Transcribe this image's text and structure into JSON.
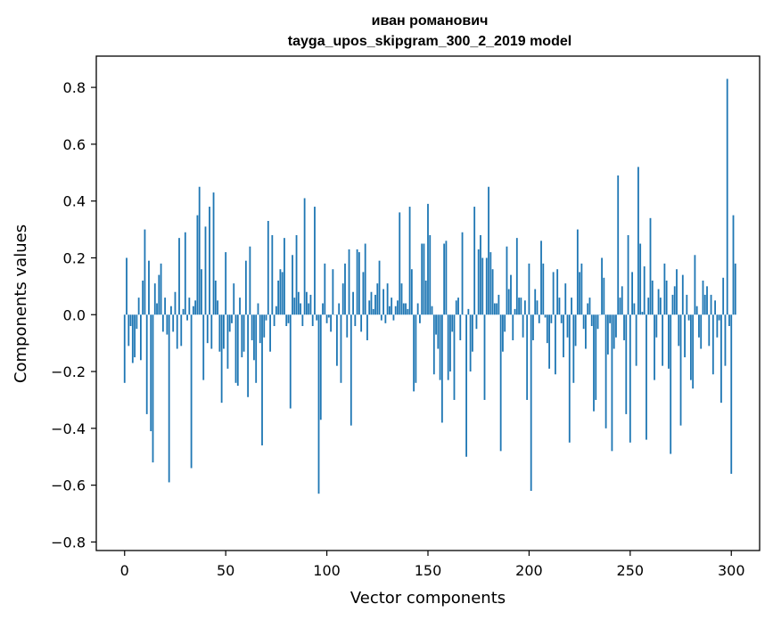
{
  "chart_data": {
    "type": "bar",
    "title": "иван романович",
    "subtitle": "tayga_upos_skipgram_300_2_2019 model",
    "xlabel": "Vector components",
    "ylabel": "Components values",
    "xlim": [
      -14,
      314
    ],
    "ylim": [
      -0.83,
      0.91
    ],
    "xticks": [
      0,
      50,
      100,
      150,
      200,
      250,
      300
    ],
    "yticks": [
      -0.8,
      -0.6,
      -0.4,
      -0.2,
      0.0,
      0.2,
      0.4,
      0.6,
      0.8
    ],
    "ytick_labels": [
      "−0.8",
      "−0.6",
      "−0.4",
      "−0.2",
      "0.0",
      "0.2",
      "0.4",
      "0.6",
      "0.8"
    ],
    "grid": false,
    "bar_color": "#1f77b4",
    "values": [
      -0.24,
      0.2,
      -0.11,
      -0.04,
      -0.17,
      -0.15,
      -0.05,
      0.06,
      -0.16,
      0.12,
      0.3,
      -0.35,
      0.19,
      -0.41,
      -0.52,
      0.11,
      0.04,
      0.14,
      0.18,
      -0.06,
      0.06,
      -0.07,
      -0.59,
      0.03,
      -0.06,
      0.08,
      -0.12,
      0.27,
      -0.11,
      0.02,
      0.29,
      -0.02,
      0.06,
      -0.54,
      0.03,
      0.05,
      0.35,
      0.45,
      0.16,
      -0.23,
      0.31,
      -0.1,
      0.38,
      -0.12,
      0.43,
      0.12,
      0.05,
      -0.13,
      -0.31,
      -0.12,
      0.22,
      -0.19,
      -0.06,
      -0.03,
      0.11,
      -0.24,
      -0.25,
      0.06,
      -0.15,
      -0.13,
      0.19,
      -0.29,
      0.24,
      -0.09,
      -0.16,
      -0.24,
      0.04,
      -0.1,
      -0.46,
      -0.08,
      -0.02,
      0.33,
      -0.13,
      0.28,
      -0.04,
      0.03,
      0.12,
      0.16,
      0.15,
      0.27,
      -0.04,
      -0.03,
      -0.33,
      0.21,
      0.06,
      0.28,
      0.08,
      0.04,
      -0.04,
      0.41,
      0.08,
      0.04,
      0.07,
      -0.04,
      0.38,
      -0.02,
      -0.63,
      -0.37,
      0.04,
      0.18,
      -0.03,
      -0.01,
      -0.06,
      0.16,
      0.0,
      -0.18,
      0.04,
      -0.24,
      0.11,
      0.18,
      -0.08,
      0.23,
      -0.39,
      0.08,
      -0.04,
      0.23,
      0.22,
      -0.06,
      0.15,
      0.25,
      -0.09,
      0.05,
      0.08,
      0.02,
      0.07,
      0.11,
      0.19,
      -0.02,
      0.09,
      -0.03,
      0.11,
      0.03,
      0.06,
      -0.02,
      0.03,
      0.05,
      0.36,
      0.11,
      0.04,
      0.04,
      0.02,
      0.38,
      0.16,
      -0.27,
      -0.24,
      0.04,
      -0.03,
      0.25,
      0.25,
      0.12,
      0.39,
      0.28,
      0.03,
      -0.21,
      -0.07,
      -0.12,
      -0.23,
      -0.38,
      0.25,
      0.26,
      -0.23,
      -0.2,
      -0.06,
      -0.3,
      0.05,
      0.06,
      -0.09,
      0.29,
      0.0,
      -0.5,
      0.02,
      -0.2,
      -0.13,
      0.38,
      -0.05,
      0.23,
      0.28,
      0.2,
      -0.3,
      0.2,
      0.45,
      0.22,
      0.16,
      0.04,
      0.04,
      0.07,
      -0.48,
      -0.13,
      -0.06,
      0.24,
      0.09,
      0.14,
      -0.09,
      0.02,
      0.27,
      0.06,
      0.06,
      -0.08,
      0.05,
      -0.3,
      0.18,
      -0.62,
      -0.09,
      0.09,
      0.05,
      -0.03,
      0.26,
      0.18,
      -0.01,
      -0.1,
      -0.19,
      -0.03,
      0.15,
      -0.21,
      0.16,
      0.06,
      -0.03,
      -0.15,
      0.11,
      -0.08,
      -0.45,
      0.06,
      -0.24,
      -0.11,
      0.3,
      0.15,
      0.18,
      -0.05,
      -0.12,
      0.04,
      0.06,
      -0.04,
      -0.34,
      -0.3,
      -0.05,
      0.0,
      0.2,
      0.13,
      -0.4,
      -0.14,
      -0.03,
      -0.48,
      -0.12,
      -0.08,
      0.49,
      0.06,
      0.1,
      -0.09,
      -0.35,
      0.28,
      -0.45,
      0.15,
      0.04,
      -0.18,
      0.52,
      0.25,
      0.01,
      0.17,
      -0.44,
      0.06,
      0.34,
      0.12,
      -0.23,
      -0.08,
      0.09,
      0.06,
      -0.18,
      0.18,
      0.12,
      -0.19,
      -0.49,
      0.07,
      0.1,
      0.16,
      -0.11,
      -0.39,
      0.14,
      -0.15,
      0.07,
      -0.02,
      -0.23,
      -0.26,
      0.21,
      0.03,
      -0.08,
      -0.12,
      0.12,
      0.07,
      0.1,
      -0.11,
      0.07,
      -0.21,
      0.05,
      -0.08,
      -0.02,
      -0.31,
      0.13,
      -0.18,
      0.83,
      -0.04,
      -0.56,
      0.35,
      0.18
    ]
  }
}
